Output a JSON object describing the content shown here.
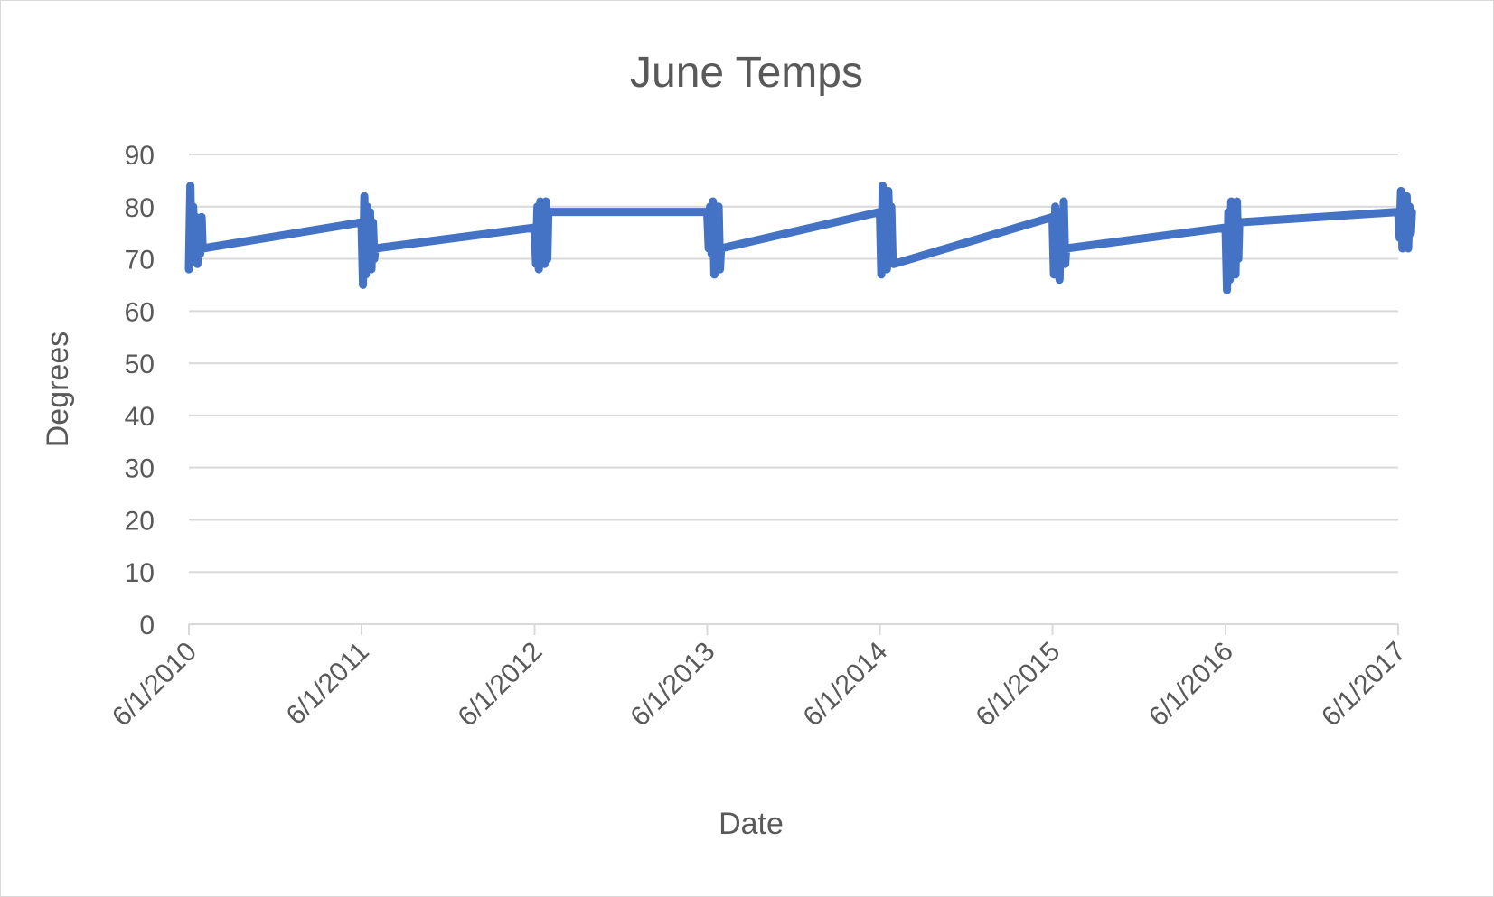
{
  "chart_data": {
    "type": "line",
    "title": "June Temps",
    "xlabel": "Date",
    "ylabel": "Degrees",
    "ylim": [
      0,
      90
    ],
    "yticks": [
      0,
      10,
      20,
      30,
      40,
      50,
      60,
      70,
      80,
      90
    ],
    "xlim": [
      "2010-06-01",
      "2017-06-01"
    ],
    "xticks": [
      {
        "date": "2010-06-01",
        "label": "6/1/2010"
      },
      {
        "date": "2011-06-01",
        "label": "6/1/2011"
      },
      {
        "date": "2012-06-01",
        "label": "6/1/2012"
      },
      {
        "date": "2013-06-01",
        "label": "6/1/2013"
      },
      {
        "date": "2014-06-01",
        "label": "6/1/2014"
      },
      {
        "date": "2015-06-01",
        "label": "6/1/2015"
      },
      {
        "date": "2016-06-01",
        "label": "6/1/2016"
      },
      {
        "date": "2017-06-01",
        "label": "6/1/2017"
      }
    ],
    "grid": true,
    "legend": "none",
    "color": "#4472c4",
    "series": [
      {
        "x": [
          "2010-06-01",
          "2010-06-04",
          "2010-06-07",
          "2010-06-10",
          "2010-06-13",
          "2010-06-16",
          "2010-06-19",
          "2010-06-22",
          "2010-06-25",
          "2010-06-28",
          "2010-06-30",
          "2011-06-01",
          "2011-06-04",
          "2011-06-07",
          "2011-06-10",
          "2011-06-13",
          "2011-06-16",
          "2011-06-19",
          "2011-06-22",
          "2011-06-25",
          "2011-06-28",
          "2011-06-30",
          "2012-06-01",
          "2012-06-04",
          "2012-06-07",
          "2012-06-10",
          "2012-06-13",
          "2012-06-16",
          "2012-06-19",
          "2012-06-22",
          "2012-06-25",
          "2012-06-28",
          "2012-06-30",
          "2013-06-01",
          "2013-06-04",
          "2013-06-07",
          "2013-06-10",
          "2013-06-13",
          "2013-06-16",
          "2013-06-19",
          "2013-06-22",
          "2013-06-25",
          "2013-06-28",
          "2013-06-30",
          "2014-06-01",
          "2014-06-04",
          "2014-06-07",
          "2014-06-10",
          "2014-06-13",
          "2014-06-16",
          "2014-06-19",
          "2014-06-22",
          "2014-06-25",
          "2014-06-28",
          "2014-06-30",
          "2015-06-01",
          "2015-06-04",
          "2015-06-07",
          "2015-06-10",
          "2015-06-13",
          "2015-06-16",
          "2015-06-19",
          "2015-06-22",
          "2015-06-25",
          "2015-06-28",
          "2015-06-30",
          "2016-06-01",
          "2016-06-04",
          "2016-06-07",
          "2016-06-10",
          "2016-06-13",
          "2016-06-16",
          "2016-06-19",
          "2016-06-22",
          "2016-06-25",
          "2016-06-28",
          "2016-06-30",
          "2017-06-01",
          "2017-06-04",
          "2017-06-07",
          "2017-06-10",
          "2017-06-13",
          "2017-06-16",
          "2017-06-19",
          "2017-06-22",
          "2017-06-25",
          "2017-06-28",
          "2017-06-30"
        ],
        "y": [
          68,
          84,
          70,
          80,
          72,
          78,
          69,
          76,
          71,
          78,
          72,
          77,
          65,
          82,
          67,
          80,
          70,
          79,
          68,
          77,
          70,
          72,
          76,
          69,
          80,
          68,
          81,
          70,
          80,
          69,
          81,
          70,
          79,
          79,
          72,
          80,
          71,
          81,
          67,
          79,
          70,
          80,
          68,
          72,
          79,
          67,
          84,
          70,
          82,
          68,
          83,
          72,
          80,
          70,
          69,
          78,
          67,
          80,
          68,
          79,
          66,
          78,
          70,
          81,
          69,
          72,
          76,
          64,
          79,
          66,
          81,
          70,
          80,
          67,
          81,
          70,
          77,
          79,
          74,
          83,
          72,
          81,
          75,
          82,
          72,
          80,
          75,
          79
        ]
      }
    ]
  }
}
